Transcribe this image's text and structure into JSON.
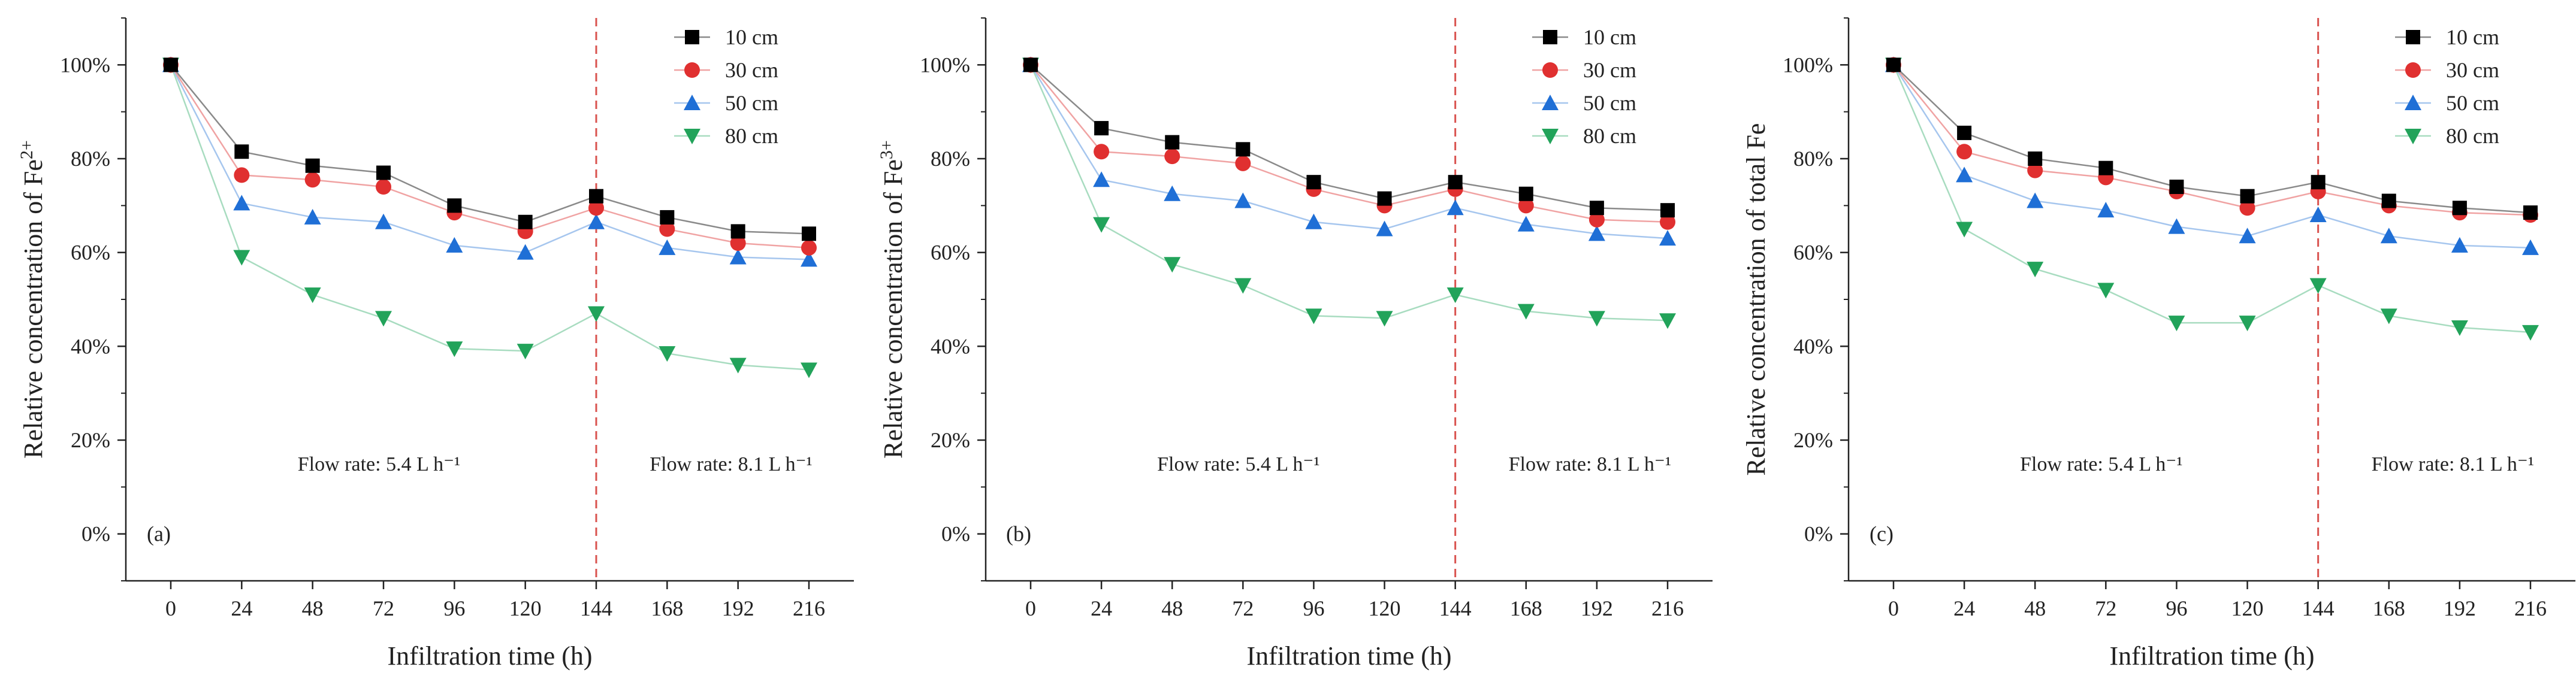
{
  "colors": {
    "axis": "#222222",
    "divider": "#d9534f",
    "series": [
      "#000000",
      "#e03030",
      "#1f6fd6",
      "#22a35a"
    ],
    "lines": [
      "#8a8a8a",
      "#f0a3a3",
      "#a6c6ee",
      "#a8dcc0"
    ]
  },
  "marker_shapes": [
    "square",
    "circle",
    "triangle-up",
    "triangle-down"
  ],
  "chart_data": [
    {
      "type": "line",
      "panel_label": "(a)",
      "xlabel": "Infiltration time (h)",
      "ylabel_main": "Relative concentration of Fe",
      "ylabel_sup": "2+",
      "x": [
        0,
        24,
        48,
        72,
        96,
        120,
        144,
        168,
        192,
        216
      ],
      "xticks": [
        "0",
        "24",
        "48",
        "72",
        "96",
        "120",
        "144",
        "168",
        "192",
        "216"
      ],
      "ylim": [
        -10,
        110
      ],
      "yticks": [
        "0%",
        "20%",
        "40%",
        "60%",
        "80%",
        "100%"
      ],
      "ytick_values": [
        0,
        20,
        40,
        60,
        80,
        100
      ],
      "divider_x": 144,
      "annotations": [
        "Flow rate: 5.4 L h⁻¹",
        "Flow rate: 8.1 L h⁻¹"
      ],
      "legend_position": "top-right",
      "series": [
        {
          "name": "10 cm",
          "values": [
            100,
            81.5,
            78.5,
            77,
            70,
            66.5,
            72,
            67.5,
            64.5,
            64
          ]
        },
        {
          "name": "30 cm",
          "values": [
            100,
            76.5,
            75.5,
            74,
            68.5,
            64.5,
            69.5,
            65,
            62,
            61
          ]
        },
        {
          "name": "50 cm",
          "values": [
            100,
            70.5,
            67.5,
            66.5,
            61.5,
            60,
            66.5,
            61,
            59,
            58.5
          ]
        },
        {
          "name": "80 cm",
          "values": [
            100,
            59,
            51,
            46,
            39.5,
            39,
            47,
            38.5,
            36,
            35
          ]
        }
      ]
    },
    {
      "type": "line",
      "panel_label": "(b)",
      "xlabel": "Infiltration time (h)",
      "ylabel_main": "Relative concentration of Fe",
      "ylabel_sup": "3+",
      "x": [
        0,
        24,
        48,
        72,
        96,
        120,
        144,
        168,
        192,
        216
      ],
      "xticks": [
        "0",
        "24",
        "48",
        "72",
        "96",
        "120",
        "144",
        "168",
        "192",
        "216"
      ],
      "ylim": [
        -10,
        110
      ],
      "yticks": [
        "0%",
        "20%",
        "40%",
        "60%",
        "80%",
        "100%"
      ],
      "ytick_values": [
        0,
        20,
        40,
        60,
        80,
        100
      ],
      "divider_x": 144,
      "annotations": [
        "Flow rate: 5.4 L h⁻¹",
        "Flow rate: 8.1 L h⁻¹"
      ],
      "legend_position": "top-right",
      "series": [
        {
          "name": "10 cm",
          "values": [
            100,
            86.5,
            83.5,
            82,
            75,
            71.5,
            75,
            72.5,
            69.5,
            69
          ]
        },
        {
          "name": "30 cm",
          "values": [
            100,
            81.5,
            80.5,
            79,
            73.5,
            70,
            73.5,
            70,
            67,
            66.5
          ]
        },
        {
          "name": "50 cm",
          "values": [
            100,
            75.5,
            72.5,
            71,
            66.5,
            65,
            69.5,
            66,
            64,
            63
          ]
        },
        {
          "name": "80 cm",
          "values": [
            100,
            66,
            57.5,
            53,
            46.5,
            46,
            51,
            47.5,
            46,
            45.5
          ]
        }
      ]
    },
    {
      "type": "line",
      "panel_label": "(c)",
      "xlabel": "Infiltration time (h)",
      "ylabel_main": "Relative concentration of total Fe",
      "ylabel_sup": "",
      "x": [
        0,
        24,
        48,
        72,
        96,
        120,
        144,
        168,
        192,
        216
      ],
      "xticks": [
        "0",
        "24",
        "48",
        "72",
        "96",
        "120",
        "144",
        "168",
        "192",
        "216"
      ],
      "ylim": [
        -10,
        110
      ],
      "yticks": [
        "0%",
        "20%",
        "40%",
        "60%",
        "80%",
        "100%"
      ],
      "ytick_values": [
        0,
        20,
        40,
        60,
        80,
        100
      ],
      "divider_x": 144,
      "annotations": [
        "Flow rate: 5.4 L h⁻¹",
        "Flow rate: 8.1 L h⁻¹"
      ],
      "legend_position": "top-right",
      "series": [
        {
          "name": "10 cm",
          "values": [
            100,
            85.5,
            80,
            78,
            74,
            72,
            75,
            71,
            69.5,
            68.5
          ]
        },
        {
          "name": "30 cm",
          "values": [
            100,
            81.5,
            77.5,
            76,
            73,
            69.5,
            73,
            70,
            68.5,
            68
          ]
        },
        {
          "name": "50 cm",
          "values": [
            100,
            76.5,
            71,
            69,
            65.5,
            63.5,
            68,
            63.5,
            61.5,
            61
          ]
        },
        {
          "name": "80 cm",
          "values": [
            100,
            65,
            56.5,
            52,
            45,
            45,
            53,
            46.5,
            44,
            43
          ]
        }
      ]
    }
  ]
}
